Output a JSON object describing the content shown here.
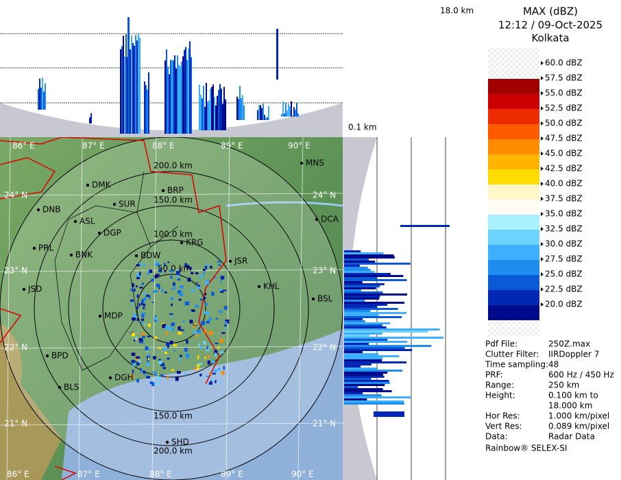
{
  "header": {
    "title": "MAX (dBZ)",
    "time": "12:12 / 09-Oct-2025",
    "site": "Kolkata"
  },
  "heights": {
    "top": "18.0 km",
    "bottom": "0.1 km"
  },
  "legend": {
    "labels": [
      "60.0 dBZ",
      "57.5 dBZ",
      "55.0 dBZ",
      "52.5 dBZ",
      "50.0 dBZ",
      "47.5 dBZ",
      "45.0 dBZ",
      "42.5 dBZ",
      "40.0 dBZ",
      "37.5 dBZ",
      "35.0 dBZ",
      "32.5 dBZ",
      "30.0 dBZ",
      "27.5 dBZ",
      "25.0 dBZ",
      "22.5 dBZ",
      "20.0 dBZ"
    ],
    "colors": [
      "#a00000",
      "#cc0000",
      "#ee2a00",
      "#ff5a00",
      "#ff8c00",
      "#ffb400",
      "#ffdc00",
      "#fff7c8",
      "#fffcf5",
      "#aaf0ff",
      "#6ed2ff",
      "#3cb0ff",
      "#1e8cf0",
      "#0a5ad7",
      "#0028b4",
      "#000a8c"
    ]
  },
  "info": [
    {
      "key": "Pdf File:",
      "value": [
        "250Z.max"
      ]
    },
    {
      "key": "Clutter Filter:",
      "value": [
        "IIRDoppler 7"
      ]
    },
    {
      "key": "Time sampling:48"
    },
    {
      "key": "PRF:",
      "value": [
        "600 Hz / 450 Hz"
      ]
    },
    {
      "key": "Range:",
      "value": [
        "250 km"
      ]
    },
    {
      "key": "Height:",
      "value": [
        "0.100 km to",
        "18.000 km"
      ]
    },
    {
      "key": "Hor Res:",
      "value": [
        "1.000 km/pixel"
      ]
    },
    {
      "key": "Vert Res:",
      "value": [
        "0.089 km/pixel"
      ]
    },
    {
      "key": "Data:",
      "value": [
        "Radar Data"
      ]
    }
  ],
  "footer": "Rainbow® SELEX-SI",
  "map": {
    "longitudes": [
      "86° E",
      "87° E",
      "88° E",
      "89° E",
      "90° E"
    ],
    "latitudes": [
      "24° N",
      "23° N",
      "22° N",
      "21° N"
    ],
    "rings": [
      "50.0 km",
      "100.0 km",
      "150.0 km",
      "200.0 km"
    ],
    "cities": [
      "MNS",
      "DMK",
      "BRP",
      "SUR",
      "DNB",
      "ASL",
      "DGP",
      "DCA",
      "PRL",
      "BNK",
      "KRG",
      "BDW",
      "JSR",
      "KHL",
      "JSD",
      "BSL",
      "MDP",
      "BPD",
      "DGH",
      "BLS",
      "SHD"
    ]
  }
}
